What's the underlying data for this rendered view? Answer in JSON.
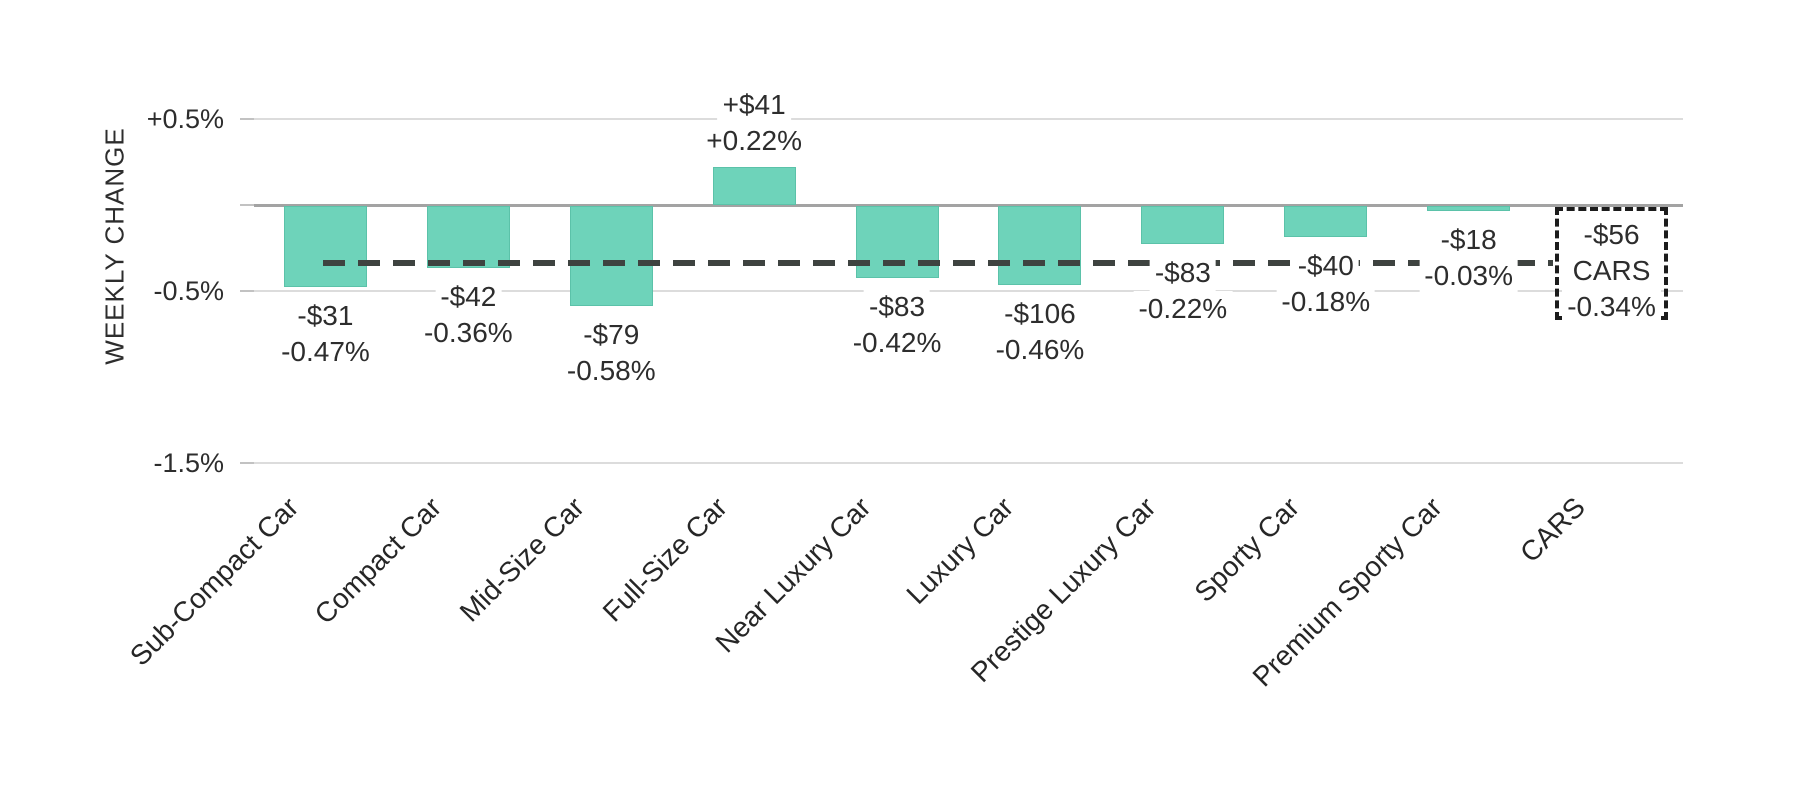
{
  "chart_data": {
    "type": "bar",
    "title": "",
    "xlabel": "",
    "ylabel": "WEEKLY CHANGE",
    "legend": "none",
    "grid": "horizontal",
    "bar_color": "#6ed3ba",
    "y_axis": {
      "range_pct": [
        -1.5,
        0.5
      ],
      "ticks": [
        {
          "label": "+0.5%",
          "pct": 0.5
        },
        {
          "label": "-0.5%",
          "pct": -0.5
        },
        {
          "label": "-1.5%",
          "pct": -1.5
        }
      ]
    },
    "average_line": {
      "pct": -0.34,
      "style": "dashed"
    },
    "categories": [
      "Sub-Compact Car",
      "Compact Car",
      "Mid-Size Car",
      "Full-Size Car",
      "Near Luxury Car",
      "Luxury Car",
      "Prestige Luxury Car",
      "Sporty Car",
      "Premium Sporty Car",
      "CARS"
    ],
    "bars": [
      {
        "category": "Sub-Compact Car",
        "dollar": "-$31",
        "pct_label": "-0.47%",
        "pct": -0.47,
        "summary": false
      },
      {
        "category": "Compact Car",
        "dollar": "-$42",
        "pct_label": "-0.36%",
        "pct": -0.36,
        "summary": false
      },
      {
        "category": "Mid-Size Car",
        "dollar": "-$79",
        "pct_label": "-0.58%",
        "pct": -0.58,
        "summary": false
      },
      {
        "category": "Full-Size Car",
        "dollar": "+$41",
        "pct_label": "+0.22%",
        "pct": 0.22,
        "summary": false
      },
      {
        "category": "Near Luxury Car",
        "dollar": "-$83",
        "pct_label": "-0.42%",
        "pct": -0.42,
        "summary": false
      },
      {
        "category": "Luxury Car",
        "dollar": "-$106",
        "pct_label": "-0.46%",
        "pct": -0.46,
        "summary": false
      },
      {
        "category": "Prestige Luxury Car",
        "dollar": "-$83",
        "pct_label": "-0.22%",
        "pct": -0.22,
        "summary": false
      },
      {
        "category": "Sporty Car",
        "dollar": "-$40",
        "pct_label": "-0.18%",
        "pct": -0.18,
        "summary": false
      },
      {
        "category": "Premium Sporty Car",
        "dollar": "-$18",
        "pct_label": "-0.03%",
        "pct": -0.03,
        "summary": false
      },
      {
        "category": "CARS",
        "dollar": "-$56",
        "pct_label": "-0.34%",
        "pct": -0.34,
        "summary": true
      }
    ]
  }
}
